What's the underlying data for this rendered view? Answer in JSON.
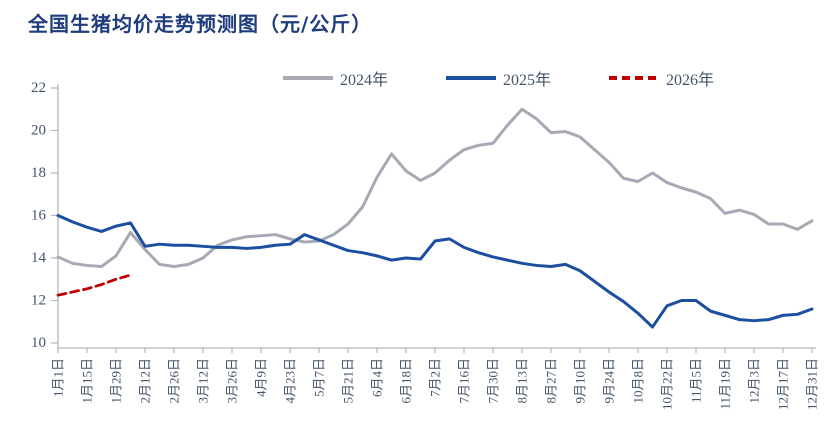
{
  "title": "全国生猪均价走势预测图（元/公斤）",
  "colors": {
    "title_text": "#1f3c7e",
    "axis_line": "#b3b6bf",
    "tick_label": "#44546a",
    "series_2024": "#a7a9b4",
    "series_2025": "#1c4fa0",
    "series_2026": "#c00000",
    "background": "#ffffff"
  },
  "chart_data": {
    "type": "line",
    "title": "全国生猪均价走势预测图（元/公斤）",
    "unit": "元/公斤",
    "legend_position": "top",
    "grid": false,
    "ylim": [
      10,
      22.5
    ],
    "y_ticks": [
      10,
      12,
      14,
      16,
      18,
      20,
      22
    ],
    "x_tick_labels": [
      "1月1日",
      "1月15日",
      "1月29日",
      "2月12日",
      "2月26日",
      "3月12日",
      "3月26日",
      "4月9日",
      "4月23日",
      "5月7日",
      "5月21日",
      "6月4日",
      "6月18日",
      "7月2日",
      "7月16日",
      "7月30日",
      "8月13日",
      "8月27日",
      "9月10日",
      "9月24日",
      "10月8日",
      "10月22日",
      "11月5日",
      "11月19日",
      "12月3日",
      "12月17日",
      "12月31日"
    ],
    "x_resolution": "weekly, 2 data points per labeled tick, from 1月1日 to 12月31日",
    "series": [
      {
        "name": "2024年",
        "style": "solid",
        "color": "#a7a9b4",
        "values": [
          14.05,
          13.75,
          13.65,
          13.6,
          14.1,
          15.2,
          14.4,
          13.7,
          13.6,
          13.7,
          14.0,
          14.6,
          14.85,
          15.0,
          15.05,
          15.1,
          14.9,
          14.75,
          14.8,
          15.1,
          15.6,
          16.4,
          17.8,
          18.9,
          18.1,
          17.65,
          18.0,
          18.6,
          19.1,
          19.3,
          19.4,
          20.25,
          21.0,
          20.55,
          19.9,
          19.95,
          19.7,
          19.1,
          18.5,
          17.75,
          17.6,
          18.0,
          17.55,
          17.3,
          17.1,
          16.8,
          16.1,
          16.25,
          16.05,
          15.6,
          15.6,
          15.35,
          15.75
        ]
      },
      {
        "name": "2025年",
        "style": "solid",
        "color": "#1c4fa0",
        "values": [
          16.0,
          15.7,
          15.45,
          15.25,
          15.5,
          15.65,
          14.55,
          14.65,
          14.6,
          14.6,
          14.55,
          14.5,
          14.5,
          14.45,
          14.5,
          14.6,
          14.65,
          15.1,
          14.85,
          14.6,
          14.35,
          14.25,
          14.1,
          13.9,
          14.0,
          13.95,
          14.8,
          14.9,
          14.5,
          14.25,
          14.05,
          13.9,
          13.75,
          13.65,
          13.6,
          13.7,
          13.4,
          12.9,
          12.4,
          11.95,
          11.4,
          10.75,
          11.75,
          12.0,
          12.0,
          11.5,
          11.3,
          11.1,
          11.05,
          11.1,
          11.3,
          11.35,
          11.6
        ]
      },
      {
        "name": "2026年",
        "style": "dashed",
        "color": "#c00000",
        "values": [
          12.25,
          12.4,
          12.55,
          12.75,
          13.0,
          13.2
        ]
      }
    ]
  }
}
